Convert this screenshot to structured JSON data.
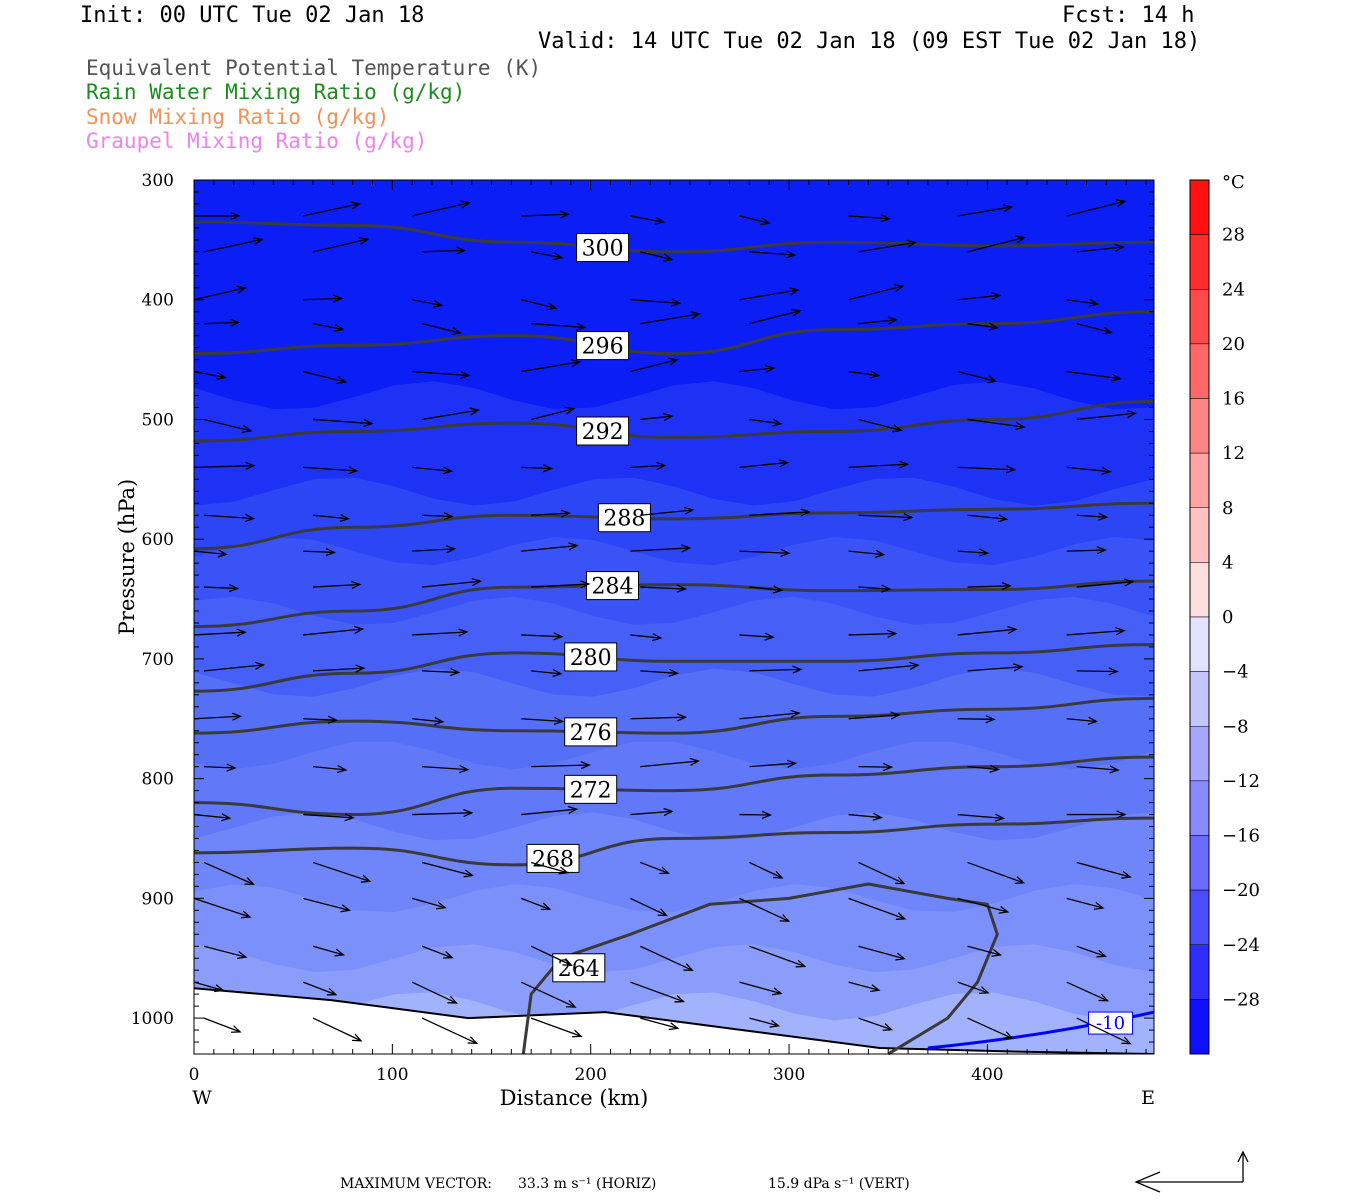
{
  "header": {
    "init": "Init: 00 UTC Tue 02 Jan 18",
    "fcst": "Fcst:   14 h",
    "valid": "Valid: 14 UTC Tue 02 Jan 18 (09 EST Tue 02 Jan 18)"
  },
  "legend": [
    {
      "label": "Equivalent Potential Temperature (K)",
      "color": "#555555"
    },
    {
      "label": "Rain Water Mixing Ratio (g/kg)",
      "color": "#1e8c1e"
    },
    {
      "label": "Snow Mixing Ratio (g/kg)",
      "color": "#f0925a"
    },
    {
      "label": "Graupel Mixing Ratio (g/kg)",
      "color": "#ee82ee"
    }
  ],
  "bottom": {
    "max_vector_label": "MAXIMUM VECTOR:",
    "horiz": "33.3 m s⁻¹ (HORIZ)",
    "vert": "15.9 dPa s⁻¹ (VERT)"
  },
  "chart_data": {
    "type": "heatmap",
    "xlabel": "Distance (km)",
    "ylabel": "Pressure (hPa)",
    "x_ticks": [
      0,
      100,
      200,
      300,
      400
    ],
    "xlim": [
      0,
      484
    ],
    "y_ticks": [
      300,
      400,
      500,
      600,
      700,
      800,
      900,
      1000
    ],
    "ylim": [
      1030,
      300
    ],
    "direction_left": "W",
    "direction_right": "E",
    "colorbar": {
      "unit": "°C",
      "labels": [
        28,
        24,
        20,
        16,
        12,
        8,
        4,
        0,
        -4,
        -8,
        -12,
        -16,
        -20,
        -24,
        -28
      ],
      "range": [
        -32,
        32
      ]
    },
    "theta_e_contours": [
      {
        "value": 300,
        "label": "300",
        "p": [
          335,
          338,
          352,
          360,
          352,
          355,
          352
        ],
        "label_x": 206
      },
      {
        "value": 296,
        "label": "296",
        "p": [
          445,
          438,
          430,
          445,
          425,
          420,
          410
        ],
        "label_x": 206
      },
      {
        "value": 292,
        "label": "292",
        "p": [
          518,
          510,
          503,
          515,
          510,
          500,
          485
        ],
        "label_x": 206
      },
      {
        "value": 288,
        "label": "288",
        "p": [
          608,
          590,
          580,
          583,
          578,
          575,
          570
        ],
        "label_x": 217
      },
      {
        "value": 284,
        "label": "284",
        "p": [
          673,
          660,
          640,
          638,
          643,
          642,
          635
        ],
        "label_x": 211
      },
      {
        "value": 280,
        "label": "280",
        "p": [
          727,
          712,
          695,
          702,
          702,
          695,
          688
        ],
        "label_x": 200
      },
      {
        "value": 276,
        "label": "276",
        "p": [
          762,
          752,
          760,
          762,
          748,
          742,
          733
        ],
        "label_x": 200
      },
      {
        "value": 272,
        "label": "272",
        "p": [
          820,
          830,
          808,
          810,
          797,
          790,
          782
        ],
        "label_x": 200
      },
      {
        "value": 268,
        "label": "268",
        "p": [
          862,
          858,
          872,
          850,
          845,
          838,
          833
        ],
        "label_x": 181
      }
    ],
    "theta_e_264": {
      "label": "264",
      "label_x": 194,
      "label_p": 958
    },
    "temp_contour": {
      "label": "-10",
      "color": "#0000ff"
    },
    "wind_vector_rows_hpa": [
      330,
      360,
      400,
      420,
      460,
      500,
      540,
      580,
      610,
      640,
      680,
      710,
      750,
      790,
      830,
      870,
      900,
      940,
      970,
      1000
    ],
    "terrain_surface_hpa": [
      975,
      985,
      1000,
      995,
      1010,
      1025,
      1028,
      1030
    ]
  }
}
